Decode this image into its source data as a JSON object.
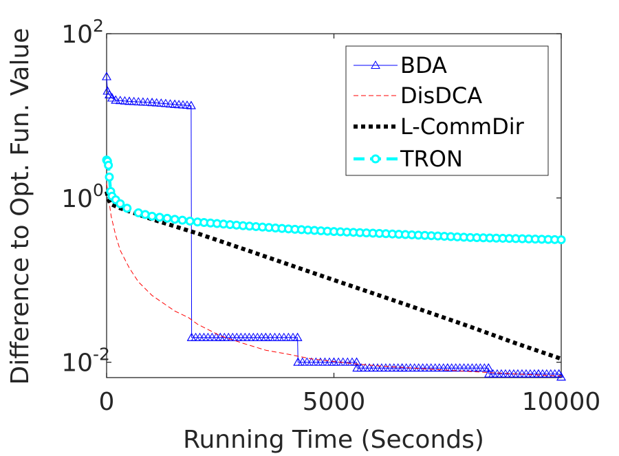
{
  "chart_data": {
    "type": "line",
    "title": "",
    "xlabel": "Running Time (Seconds)",
    "ylabel": "Difference to Opt. Fun. Value",
    "xlim": [
      0,
      10000
    ],
    "ylim": [
      0.0065,
      100
    ],
    "yscale": "log",
    "grid": false,
    "legend_position": "top-right",
    "x_ticks": [
      {
        "value": 0,
        "label": "0"
      },
      {
        "value": 5000,
        "label": "5000"
      },
      {
        "value": 10000,
        "label": "10000"
      }
    ],
    "y_ticks": [
      {
        "value": 100,
        "base": "10",
        "exp": "2"
      },
      {
        "value": 1,
        "base": "10",
        "exp": "0"
      },
      {
        "value": 0.01,
        "base": "10",
        "exp": "-2"
      }
    ],
    "series": [
      {
        "name": "BDA",
        "color": "#0000ff",
        "style": "solid-thin",
        "marker": "triangle",
        "x": [
          0,
          20,
          60,
          120,
          200,
          500,
          1000,
          1500,
          1860,
          1870,
          2500,
          3500,
          4200,
          4210,
          5000,
          5500,
          5510,
          6500,
          7500,
          8400,
          8410,
          9500,
          9950,
          10000
        ],
        "y": [
          30,
          20,
          18,
          16.5,
          15.5,
          15,
          14.5,
          13.8,
          13.3,
          0.02,
          0.02,
          0.02,
          0.02,
          0.01,
          0.01,
          0.01,
          0.0085,
          0.0085,
          0.0085,
          0.0085,
          0.0072,
          0.0072,
          0.0072,
          0.0066
        ]
      },
      {
        "name": "DisDCA",
        "color": "#ff0000",
        "style": "dashed-thin",
        "marker": "none",
        "x": [
          0,
          100,
          200,
          300,
          500,
          700,
          1000,
          1500,
          1800,
          2000,
          2500,
          3000,
          3500,
          4000,
          4500,
          5000,
          5500,
          6000,
          7000,
          8000,
          9000,
          10000
        ],
        "y": [
          1.5,
          0.6,
          0.35,
          0.23,
          0.14,
          0.095,
          0.065,
          0.042,
          0.035,
          0.029,
          0.021,
          0.017,
          0.014,
          0.0125,
          0.011,
          0.0102,
          0.0095,
          0.009,
          0.0083,
          0.0077,
          0.0072,
          0.0068
        ]
      },
      {
        "name": "L-CommDir",
        "color": "#000000",
        "style": "dotted-thick",
        "marker": "none",
        "x": [
          0,
          30,
          80,
          300,
          1000,
          2000,
          3000,
          4000,
          5000,
          6000,
          7000,
          8000,
          9000,
          10000
        ],
        "y": [
          1.2,
          1.0,
          0.85,
          0.75,
          0.55,
          0.37,
          0.24,
          0.155,
          0.1,
          0.065,
          0.042,
          0.027,
          0.017,
          0.011
        ]
      },
      {
        "name": "TRON",
        "color": "#00ffff",
        "style": "dashdot-thick",
        "marker": "circle",
        "x": [
          0,
          20,
          40,
          60,
          90,
          120,
          200,
          300,
          450,
          700,
          1000,
          1500,
          2000,
          3000,
          4000,
          5000,
          6000,
          7000,
          8000,
          9000,
          10000
        ],
        "y": [
          2.9,
          2.8,
          2.5,
          1.8,
          1.2,
          1.05,
          0.95,
          0.85,
          0.75,
          0.66,
          0.6,
          0.55,
          0.51,
          0.46,
          0.42,
          0.39,
          0.37,
          0.35,
          0.33,
          0.32,
          0.31
        ]
      }
    ]
  }
}
